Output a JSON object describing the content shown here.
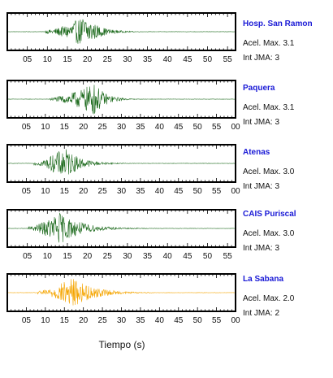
{
  "chart_data": {
    "type": "line",
    "xlabel": "Tiempo (s)",
    "ylabel": "",
    "title": "",
    "panels": [
      {
        "station": "Hosp. San Ramon",
        "acel": "Acel. Max. 3.1",
        "int": "Int JMA: 3",
        "color": "#1e6b1e",
        "x_tick_labels": [
          "05",
          "10",
          "15",
          "20",
          "25",
          "30",
          "35",
          "40",
          "45",
          "50",
          "55"
        ],
        "xlim": [
          0,
          57
        ],
        "onset_s": 9.5,
        "peak_s": 19.5,
        "peak_amplitude": 1.0,
        "coda_end_s": 30
      },
      {
        "station": "Paquera",
        "acel": "Acel. Max. 3.1",
        "int": "Int JMA: 3",
        "color": "#1e6b1e",
        "x_tick_labels": [
          "05",
          "10",
          "15",
          "20",
          "25",
          "30",
          "35",
          "40",
          "45",
          "50",
          "55",
          "00"
        ],
        "xlim": [
          0,
          60
        ],
        "onset_s": 11,
        "peak_s": 23,
        "peak_amplitude": 1.0,
        "coda_end_s": 32
      },
      {
        "station": "Atenas",
        "acel": "Acel. Max. 3.0",
        "int": "Int JMA: 3",
        "color": "#1e6b1e",
        "x_tick_labels": [
          "05",
          "10",
          "15",
          "20",
          "25",
          "30",
          "35",
          "40",
          "45",
          "50",
          "55",
          "00"
        ],
        "xlim": [
          0,
          60
        ],
        "onset_s": 7,
        "peak_s": 15,
        "peak_amplitude": 1.0,
        "coda_end_s": 28
      },
      {
        "station": "CAIS Puriscal",
        "acel": "Acel. Max. 3.0",
        "int": "Int JMA: 3",
        "color": "#1e6b1e",
        "x_tick_labels": [
          "05",
          "10",
          "15",
          "20",
          "25",
          "30",
          "35",
          "40",
          "45",
          "50",
          "55"
        ],
        "xlim": [
          0,
          57
        ],
        "onset_s": 5,
        "peak_s": 13,
        "peak_amplitude": 1.0,
        "coda_end_s": 30
      },
      {
        "station": "La Sabana",
        "acel": "Acel. Max. 2.0",
        "int": "Int JMA: 2",
        "color": "#f5a500",
        "x_tick_labels": [
          "05",
          "10",
          "15",
          "20",
          "25",
          "30",
          "35",
          "40",
          "45",
          "50",
          "55",
          "00"
        ],
        "xlim": [
          0,
          60
        ],
        "onset_s": 8,
        "peak_s": 17,
        "peak_amplitude": 1.0,
        "coda_end_s": 34
      }
    ]
  }
}
